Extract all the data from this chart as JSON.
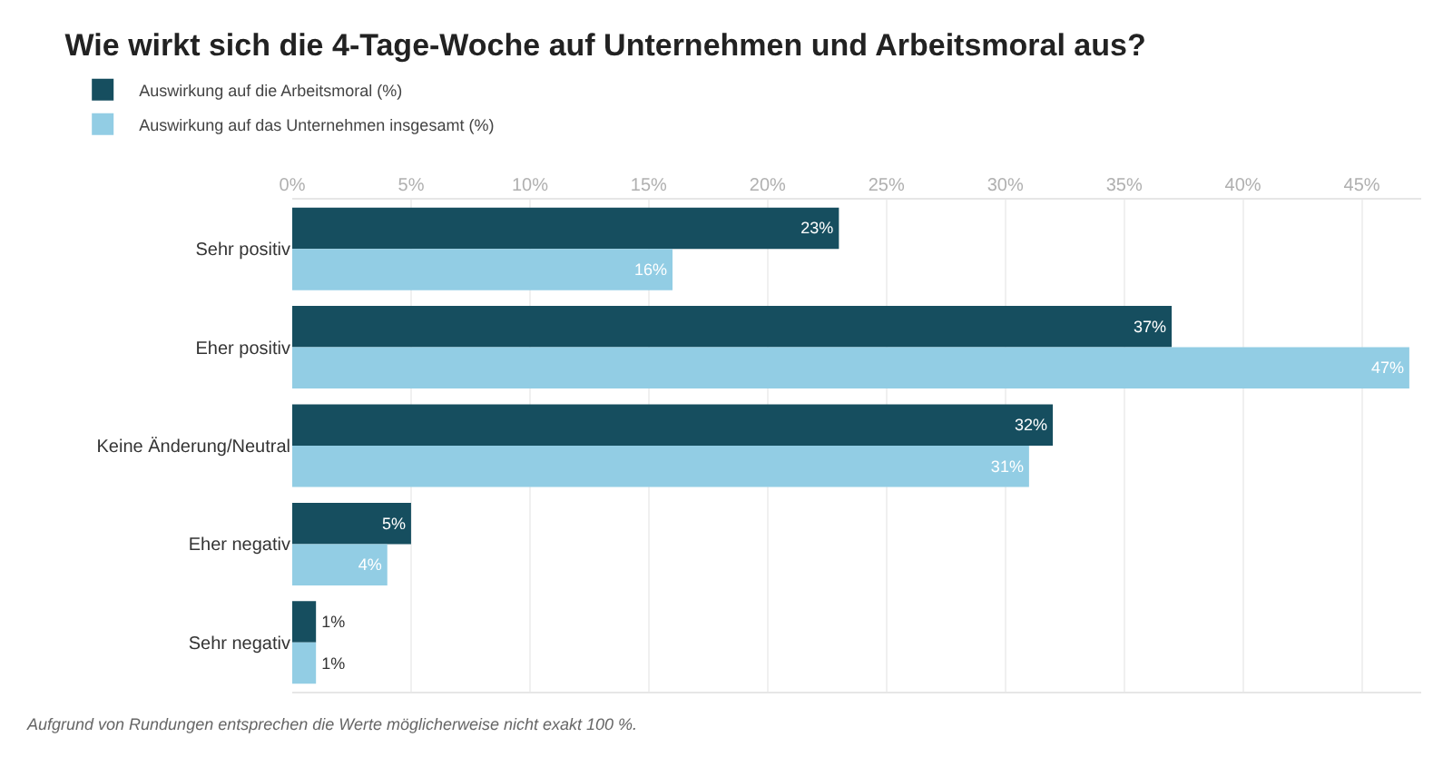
{
  "chart_data": {
    "type": "bar",
    "orientation": "horizontal",
    "title": "Wie wirkt sich die 4-Tage-Woche auf Unternehmen und Arbeitsmoral aus?",
    "categories": [
      "Sehr positiv",
      "Eher positiv",
      "Keine Änderung/Neutral",
      "Eher negativ",
      "Sehr negativ"
    ],
    "series": [
      {
        "name": "Auswirkung auf die Arbeitsmoral (%)",
        "color": "#164e5f",
        "values": [
          23,
          37,
          32,
          5,
          1
        ],
        "value_labels": [
          "23%",
          "37%",
          "32%",
          "5%",
          "1%"
        ]
      },
      {
        "name": "Auswirkung auf das Unternehmen insgesamt (%)",
        "color": "#92cde4",
        "values": [
          16,
          47,
          31,
          4,
          1
        ],
        "value_labels": [
          "16%",
          "47%",
          "31%",
          "4%",
          "1%"
        ]
      }
    ],
    "xlim": [
      0,
      47.5
    ],
    "xticks": [
      {
        "value": 0,
        "label": "0%"
      },
      {
        "value": 5,
        "label": "5%"
      },
      {
        "value": 10,
        "label": "10%"
      },
      {
        "value": 15,
        "label": "15%"
      },
      {
        "value": 20,
        "label": "20%"
      },
      {
        "value": 25,
        "label": "25%"
      },
      {
        "value": 30,
        "label": "30%"
      },
      {
        "value": 35,
        "label": "35%"
      },
      {
        "value": 40,
        "label": "40%"
      },
      {
        "value": 45,
        "label": "45%"
      }
    ],
    "grid": "x",
    "legend": "top left",
    "annotations": [
      "Aufgrund von Rundungen entsprechen die Werte möglicherweise nicht exakt 100 %."
    ]
  }
}
